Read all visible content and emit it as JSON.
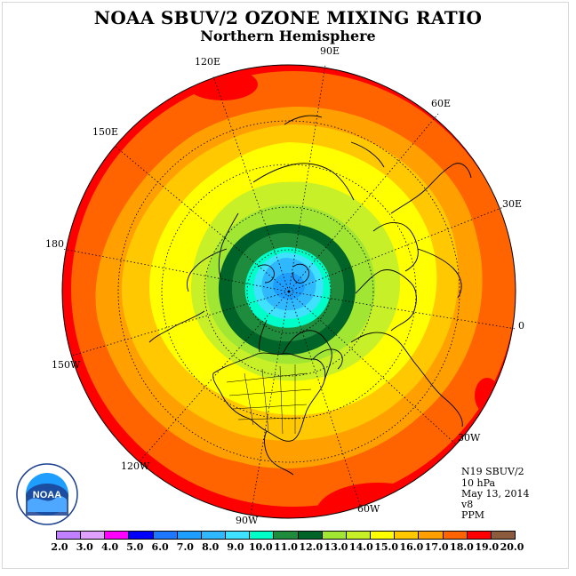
{
  "title": "NOAA SBUV/2 OZONE MIXING RATIO",
  "subtitle": "Northern Hemisphere",
  "longitude_labels": [
    "90E",
    "60E",
    "30E",
    "0",
    "30W",
    "60W",
    "90W",
    "120W",
    "150W",
    "180",
    "150E",
    "120E"
  ],
  "info": {
    "satellite": "N19 SBUV/2",
    "pressure": "10 hPa",
    "date": "May 13, 2014",
    "version": "v8",
    "units": "PPM"
  },
  "legend": {
    "labels": [
      "2.0",
      "3.0",
      "4.0",
      "5.0",
      "6.0",
      "7.0",
      "8.0",
      "9.0",
      "10.0",
      "11.0",
      "12.0",
      "13.0",
      "14.0",
      "15.0",
      "16.0",
      "17.0",
      "18.0",
      "19.0",
      "20.0"
    ],
    "colors": [
      "#c080ff",
      "#e0a0ff",
      "#ff00ff",
      "#0000ff",
      "#1e78ff",
      "#1e9eff",
      "#30b8ff",
      "#40e0ff",
      "#00ffc8",
      "#1e8c3c",
      "#006428",
      "#a0e632",
      "#c8f028",
      "#ffff00",
      "#ffc800",
      "#ffa000",
      "#ff6400",
      "#ff0000",
      "#8c5a3c"
    ]
  },
  "logo": {
    "text": "NOAA"
  },
  "map_data": {
    "projection": "north polar stereographic",
    "field": "ozone mixing ratio",
    "pole_region_max_ppm": 9.0,
    "polar_vortex_ring_ppm": 11.0,
    "midlatitude_ppm": 15.0,
    "outer_region_ppm": 18.0,
    "edge_max_ppm": 19.0
  }
}
